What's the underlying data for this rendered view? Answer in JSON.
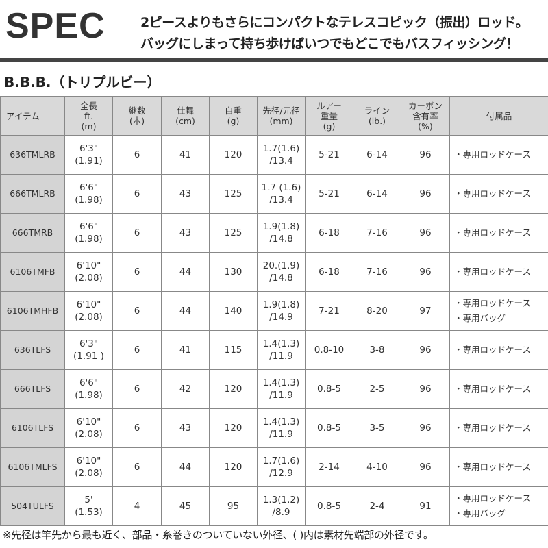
{
  "header": {
    "title": "SPEC",
    "tagline_1": "2ピースよりもさらにコンパクトなテレスコピック（振出）ロッド。",
    "tagline_2": "バッグにしまって持ち歩けばいつでもどこでもバスフィッシング！"
  },
  "subtitle": "B.B.B.（トリプルビー）",
  "table": {
    "headers": [
      [
        "アイテム"
      ],
      [
        "全長",
        "ft.",
        "(m)"
      ],
      [
        "継数",
        "(本)"
      ],
      [
        "仕舞",
        "(cm)"
      ],
      [
        "自重",
        "(g)"
      ],
      [
        "先径/元径",
        "(mm)"
      ],
      [
        "ルアー",
        "重量",
        "(g)"
      ],
      [
        "ライン",
        "(lb.)"
      ],
      [
        "カーボン",
        "含有率",
        "(%)"
      ],
      [
        "付属品"
      ]
    ],
    "rows": [
      {
        "item": "636TMLRB",
        "length_ft": "6'3\"",
        "length_m": "(1.91)",
        "pieces": "6",
        "closed": "41",
        "weight": "120",
        "tip": "1.7(1.6)",
        "butt": "/13.4",
        "lure": "5-21",
        "line": "6-14",
        "carbon": "96",
        "acc": [
          "・専用ロッドケース"
        ]
      },
      {
        "item": "666TMLRB",
        "length_ft": "6'6\"",
        "length_m": "(1.98)",
        "pieces": "6",
        "closed": "43",
        "weight": "125",
        "tip": "1.7 (1.6)",
        "butt": "/13.4",
        "lure": "5-21",
        "line": "6-14",
        "carbon": "96",
        "acc": [
          "・専用ロッドケース"
        ]
      },
      {
        "item": "666TMRB",
        "length_ft": "6'6\"",
        "length_m": "(1.98)",
        "pieces": "6",
        "closed": "43",
        "weight": "125",
        "tip": "1.9(1.8)",
        "butt": "/14.8",
        "lure": "6-18",
        "line": "7-16",
        "carbon": "96",
        "acc": [
          "・専用ロッドケース"
        ]
      },
      {
        "item": "6106TMFB",
        "length_ft": "6'10\"",
        "length_m": "(2.08)",
        "pieces": "6",
        "closed": "44",
        "weight": "130",
        "tip": "20.(1.9)",
        "butt": "/14.8",
        "lure": "6-18",
        "line": "7-16",
        "carbon": "96",
        "acc": [
          "・専用ロッドケース"
        ]
      },
      {
        "item": "6106TMHFB",
        "length_ft": "6'10\"",
        "length_m": "(2.08)",
        "pieces": "6",
        "closed": "44",
        "weight": "140",
        "tip": "1.9(1.8)",
        "butt": "/14.9",
        "lure": "7-21",
        "line": "8-20",
        "carbon": "97",
        "acc": [
          "・専用ロッドケース",
          "・専用バッグ"
        ]
      },
      {
        "item": "636TLFS",
        "length_ft": "6'3\"",
        "length_m": "(1.91 )",
        "pieces": "6",
        "closed": "41",
        "weight": "115",
        "tip": "1.4(1.3)",
        "butt": "/11.9",
        "lure": "0.8-10",
        "line": "3-8",
        "carbon": "96",
        "acc": [
          "・専用ロッドケース"
        ]
      },
      {
        "item": "666TLFS",
        "length_ft": "6'6\"",
        "length_m": "(1.98)",
        "pieces": "6",
        "closed": "42",
        "weight": "120",
        "tip": "1.4(1.3)",
        "butt": "/11.9",
        "lure": "0.8-5",
        "line": "2-5",
        "carbon": "96",
        "acc": [
          "・専用ロッドケース"
        ]
      },
      {
        "item": "6106TLFS",
        "length_ft": "6'10\"",
        "length_m": "(2.08)",
        "pieces": "6",
        "closed": "43",
        "weight": "120",
        "tip": "1.4(1.3)",
        "butt": "/11.9",
        "lure": "0.8-5",
        "line": "3-5",
        "carbon": "96",
        "acc": [
          "・専用ロッドケース"
        ]
      },
      {
        "item": "6106TMLFS",
        "length_ft": "6'10\"",
        "length_m": "(2.08)",
        "pieces": "6",
        "closed": "44",
        "weight": "120",
        "tip": "1.7(1.6)",
        "butt": "/12.9",
        "lure": "2-14",
        "line": "4-10",
        "carbon": "96",
        "acc": [
          "・専用ロッドケース"
        ]
      },
      {
        "item": "504TULFS",
        "length_ft": "5'",
        "length_m": "(1.53)",
        "pieces": "4",
        "closed": "45",
        "weight": "95",
        "tip": "1.3(1.2)",
        "butt": "/8.9",
        "lure": "0.8-5",
        "line": "2-4",
        "carbon": "91",
        "acc": [
          "・専用ロッドケース",
          "・専用バッグ"
        ]
      }
    ]
  },
  "footnote": "※先径は竿先から最も近く、部品・糸巻きのついていない外径、( )内は素材先端部の外径です。"
}
